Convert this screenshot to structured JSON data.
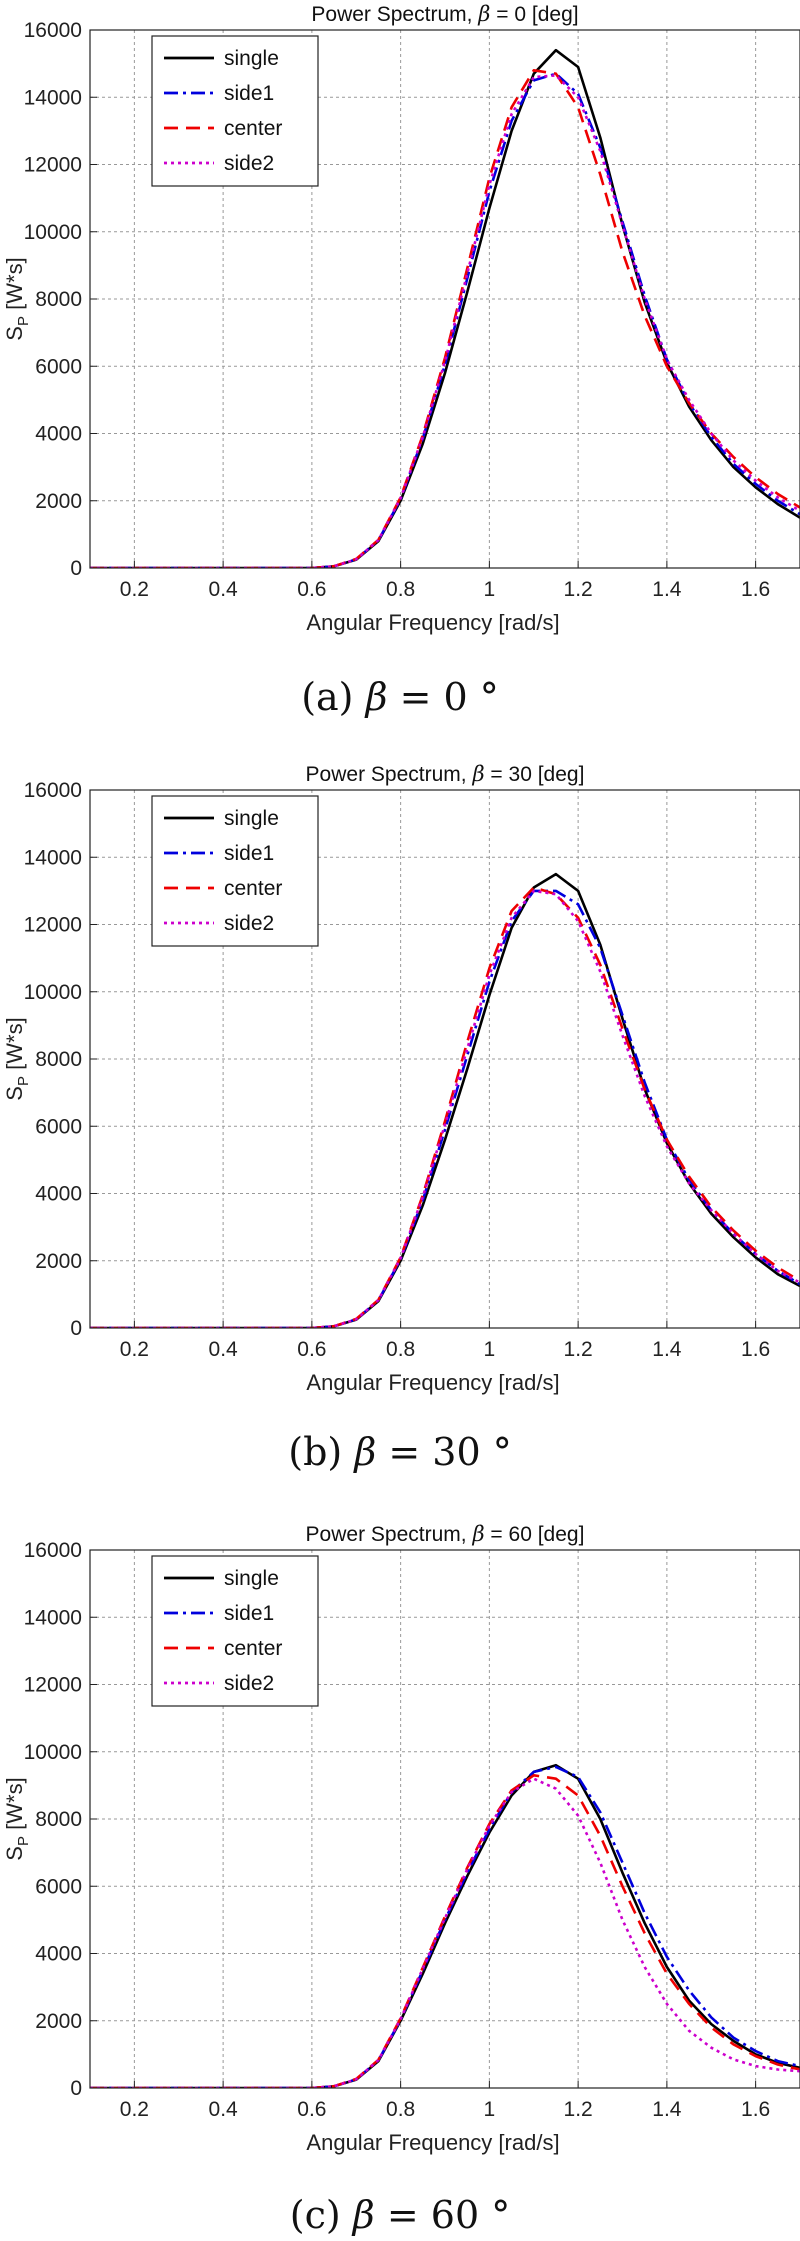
{
  "chart_data": [
    {
      "type": "line",
      "title_prefix": "Power Spectrum,",
      "title_symbol": "β",
      "title_suffix": " = 0 [deg]",
      "caption": {
        "label": "(a)",
        "symbol": "β",
        "text": " = 0 °"
      },
      "xlabel": "Angular Frequency [rad/s]",
      "ylabel_main": "S",
      "ylabel_sub": "P",
      "ylabel_rest": " [W*s]",
      "xlim": [
        0.1,
        1.7
      ],
      "ylim": [
        0,
        16000
      ],
      "xticks": [
        "0.2",
        "0.4",
        "0.6",
        "0.8",
        "1",
        "1.2",
        "1.4",
        "1.6"
      ],
      "yticks": [
        "0",
        "2000",
        "4000",
        "6000",
        "8000",
        "10000",
        "12000",
        "14000",
        "16000"
      ],
      "grid": true,
      "legend_position": "top-left",
      "x": [
        0.1,
        0.6,
        0.65,
        0.7,
        0.75,
        0.8,
        0.85,
        0.9,
        0.95,
        1.0,
        1.05,
        1.1,
        1.15,
        1.2,
        1.25,
        1.3,
        1.35,
        1.4,
        1.45,
        1.5,
        1.55,
        1.6,
        1.65,
        1.7
      ],
      "series": [
        {
          "name": "single",
          "color": "#000000",
          "dash": "",
          "values": [
            0,
            0,
            50,
            250,
            800,
            2000,
            3700,
            5800,
            8200,
            10700,
            13000,
            14700,
            15400,
            14900,
            12800,
            10200,
            7900,
            6100,
            4800,
            3800,
            3000,
            2400,
            1900,
            1500
          ]
        },
        {
          "name": "side1",
          "color": "#0000dd",
          "dash": "14,5,3,5",
          "values": [
            0,
            0,
            50,
            260,
            820,
            2050,
            3850,
            6050,
            8600,
            11200,
            13300,
            14500,
            14700,
            14100,
            12500,
            10300,
            8100,
            6200,
            4900,
            3900,
            3100,
            2500,
            2000,
            1600
          ]
        },
        {
          "name": "center",
          "color": "#ee0000",
          "dash": "14,8",
          "values": [
            0,
            0,
            55,
            270,
            840,
            2100,
            3950,
            6250,
            8900,
            11600,
            13700,
            14800,
            14700,
            13700,
            11700,
            9400,
            7500,
            6000,
            4900,
            4000,
            3300,
            2700,
            2200,
            1800
          ]
        },
        {
          "name": "side2",
          "color": "#cc00cc",
          "dash": "3,4",
          "values": [
            0,
            0,
            50,
            260,
            830,
            2080,
            3900,
            6150,
            8750,
            11400,
            13500,
            14600,
            14650,
            14000,
            12400,
            10200,
            8000,
            6200,
            5000,
            4000,
            3200,
            2600,
            2100,
            1700
          ]
        }
      ]
    },
    {
      "type": "line",
      "title_prefix": "Power Spectrum,",
      "title_symbol": "β",
      "title_suffix": " = 30 [deg]",
      "caption": {
        "label": "(b)",
        "symbol": "β",
        "text": " = 30 °"
      },
      "xlabel": "Angular Frequency [rad/s]",
      "ylabel_main": "S",
      "ylabel_sub": "P",
      "ylabel_rest": " [W*s]",
      "xlim": [
        0.1,
        1.7
      ],
      "ylim": [
        0,
        16000
      ],
      "xticks": [
        "0.2",
        "0.4",
        "0.6",
        "0.8",
        "1",
        "1.2",
        "1.4",
        "1.6"
      ],
      "yticks": [
        "0",
        "2000",
        "4000",
        "6000",
        "8000",
        "10000",
        "12000",
        "14000",
        "16000"
      ],
      "grid": true,
      "legend_position": "top-left",
      "x": [
        0.1,
        0.6,
        0.65,
        0.7,
        0.75,
        0.8,
        0.85,
        0.9,
        0.95,
        1.0,
        1.05,
        1.1,
        1.15,
        1.2,
        1.25,
        1.3,
        1.35,
        1.4,
        1.45,
        1.5,
        1.55,
        1.6,
        1.65,
        1.7
      ],
      "series": [
        {
          "name": "single",
          "color": "#000000",
          "dash": "",
          "values": [
            0,
            0,
            50,
            250,
            800,
            2000,
            3650,
            5600,
            7700,
            9900,
            11900,
            13100,
            13500,
            13000,
            11400,
            9200,
            7100,
            5500,
            4300,
            3400,
            2700,
            2100,
            1600,
            1250
          ]
        },
        {
          "name": "side1",
          "color": "#0000dd",
          "dash": "14,5,3,5",
          "values": [
            0,
            0,
            50,
            260,
            820,
            2050,
            3800,
            5900,
            8100,
            10300,
            12100,
            13000,
            13000,
            12600,
            11300,
            9300,
            7300,
            5600,
            4400,
            3500,
            2800,
            2200,
            1700,
            1300
          ]
        },
        {
          "name": "center",
          "color": "#ee0000",
          "dash": "14,8",
          "values": [
            0,
            0,
            55,
            270,
            840,
            2100,
            3950,
            6150,
            8500,
            10700,
            12400,
            13100,
            12900,
            12200,
            10800,
            8900,
            7100,
            5600,
            4500,
            3600,
            2900,
            2300,
            1800,
            1400
          ]
        },
        {
          "name": "side2",
          "color": "#cc00cc",
          "dash": "3,4",
          "values": [
            0,
            0,
            50,
            260,
            830,
            2080,
            3900,
            6050,
            8300,
            10500,
            12200,
            13000,
            12900,
            12100,
            10600,
            8700,
            6900,
            5400,
            4300,
            3500,
            2800,
            2200,
            1700,
            1350
          ]
        }
      ]
    },
    {
      "type": "line",
      "title_prefix": "Power Spectrum,",
      "title_symbol": "β",
      "title_suffix": " = 60 [deg]",
      "caption": {
        "label": "(c)",
        "symbol": "β",
        "text": " = 60 °"
      },
      "xlabel": "Angular Frequency [rad/s]",
      "ylabel_main": "S",
      "ylabel_sub": "P",
      "ylabel_rest": " [W*s]",
      "xlim": [
        0.1,
        1.7
      ],
      "ylim": [
        0,
        16000
      ],
      "xticks": [
        "0.2",
        "0.4",
        "0.6",
        "0.8",
        "1",
        "1.2",
        "1.4",
        "1.6"
      ],
      "yticks": [
        "0",
        "2000",
        "4000",
        "6000",
        "8000",
        "10000",
        "12000",
        "14000",
        "16000"
      ],
      "grid": true,
      "legend_position": "top-left",
      "x": [
        0.1,
        0.6,
        0.65,
        0.7,
        0.75,
        0.8,
        0.85,
        0.9,
        0.95,
        1.0,
        1.05,
        1.1,
        1.15,
        1.2,
        1.25,
        1.3,
        1.35,
        1.4,
        1.45,
        1.5,
        1.55,
        1.6,
        1.65,
        1.7
      ],
      "series": [
        {
          "name": "single",
          "color": "#000000",
          "dash": "",
          "values": [
            0,
            0,
            50,
            250,
            800,
            2000,
            3400,
            4900,
            6300,
            7600,
            8700,
            9400,
            9600,
            9200,
            8000,
            6400,
            4900,
            3600,
            2600,
            1900,
            1400,
            1000,
            750,
            600
          ]
        },
        {
          "name": "side1",
          "color": "#0000dd",
          "dash": "14,5,3,5",
          "values": [
            0,
            0,
            50,
            260,
            820,
            2030,
            3500,
            5000,
            6400,
            7700,
            8800,
            9400,
            9550,
            9250,
            8200,
            6700,
            5200,
            3900,
            2900,
            2100,
            1500,
            1100,
            800,
            650
          ]
        },
        {
          "name": "center",
          "color": "#ee0000",
          "dash": "14,8",
          "values": [
            0,
            0,
            55,
            270,
            840,
            2070,
            3580,
            5100,
            6550,
            7850,
            8850,
            9300,
            9200,
            8700,
            7500,
            6000,
            4600,
            3400,
            2500,
            1800,
            1300,
            950,
            700,
            550
          ]
        },
        {
          "name": "side2",
          "color": "#cc00cc",
          "dash": "3,4",
          "values": [
            0,
            0,
            50,
            260,
            830,
            2050,
            3550,
            5050,
            6500,
            7800,
            8800,
            9200,
            8900,
            8100,
            6700,
            5000,
            3600,
            2500,
            1700,
            1200,
            850,
            650,
            550,
            500
          ]
        }
      ]
    }
  ]
}
